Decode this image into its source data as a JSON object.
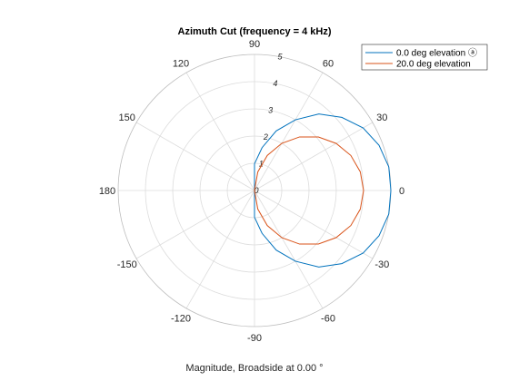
{
  "chart_data": {
    "type": "polar-line",
    "title": "Azimuth Cut (frequency = 4 kHz)",
    "xlabel": "Magnitude, Broadside at 0.00 °",
    "angle_ticks": [
      "90",
      "60",
      "30",
      "0",
      "-30",
      "-60",
      "-90",
      "-120",
      "-150",
      "180",
      "150",
      "120"
    ],
    "angle_tick_values": [
      90,
      60,
      30,
      0,
      -30,
      -60,
      -90,
      -120,
      -150,
      180,
      150,
      120
    ],
    "radial_ticks": [
      "0",
      "1",
      "2",
      "3",
      "4",
      "5"
    ],
    "radial_tick_values": [
      0,
      1,
      2,
      3,
      4,
      5
    ],
    "rlim": [
      0,
      5
    ],
    "legend_position": "top-right",
    "grid": true,
    "series": [
      {
        "name": "0.0 deg elevation ⓐ",
        "color": "#0072bd",
        "angles_deg": [
          -90,
          -80,
          -70,
          -60,
          -50,
          -40,
          -30,
          -20,
          -10,
          0,
          10,
          20,
          30,
          40,
          50,
          60,
          70,
          80,
          90
        ],
        "values": [
          0.98,
          1.6,
          2.33,
          3.0,
          3.67,
          4.18,
          4.6,
          4.86,
          5.0,
          5.0,
          5.0,
          4.86,
          4.6,
          4.18,
          3.67,
          3.0,
          2.33,
          1.6,
          0.98
        ]
      },
      {
        "name": "20.0 deg elevation",
        "color": "#d95319",
        "angles_deg": [
          -90,
          -80,
          -70,
          -60,
          -50,
          -40,
          -30,
          -20,
          -10,
          0,
          10,
          20,
          30,
          40,
          50,
          60,
          70,
          80,
          90
        ],
        "values": [
          0.0,
          0.69,
          1.37,
          2.0,
          2.57,
          3.06,
          3.46,
          3.76,
          3.94,
          4.0,
          3.94,
          3.76,
          3.46,
          3.06,
          2.57,
          2.0,
          1.37,
          0.69,
          0.0
        ]
      }
    ]
  }
}
